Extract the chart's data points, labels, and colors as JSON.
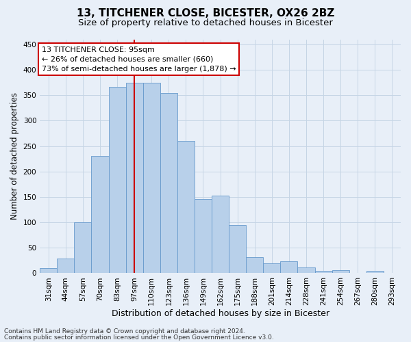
{
  "title1": "13, TITCHENER CLOSE, BICESTER, OX26 2BZ",
  "title2": "Size of property relative to detached houses in Bicester",
  "xlabel": "Distribution of detached houses by size in Bicester",
  "ylabel": "Number of detached properties",
  "categories": [
    "31sqm",
    "44sqm",
    "57sqm",
    "70sqm",
    "83sqm",
    "97sqm",
    "110sqm",
    "123sqm",
    "136sqm",
    "149sqm",
    "162sqm",
    "175sqm",
    "188sqm",
    "201sqm",
    "214sqm",
    "228sqm",
    "241sqm",
    "254sqm",
    "267sqm",
    "280sqm",
    "293sqm"
  ],
  "values": [
    10,
    29,
    100,
    230,
    367,
    375,
    375,
    355,
    260,
    146,
    153,
    95,
    32,
    20,
    23,
    12,
    5,
    6,
    0,
    5,
    0
  ],
  "bar_color": "#b8d0ea",
  "bar_edge_color": "#6699cc",
  "red_line_index": 5,
  "annotation_text_line1": "13 TITCHENER CLOSE: 95sqm",
  "annotation_text_line2": "← 26% of detached houses are smaller (660)",
  "annotation_text_line3": "73% of semi-detached houses are larger (1,878) →",
  "annotation_box_facecolor": "#ffffff",
  "annotation_box_edgecolor": "#cc0000",
  "red_line_color": "#cc0000",
  "grid_color": "#c5d5e5",
  "bg_color": "#e8eff8",
  "ylim": [
    0,
    460
  ],
  "yticks": [
    0,
    50,
    100,
    150,
    200,
    250,
    300,
    350,
    400,
    450
  ],
  "footer1": "Contains HM Land Registry data © Crown copyright and database right 2024.",
  "footer2": "Contains public sector information licensed under the Open Government Licence v3.0.",
  "title1_fontsize": 11,
  "title2_fontsize": 9.5,
  "xlabel_fontsize": 9,
  "ylabel_fontsize": 8.5,
  "tick_fontsize": 7.5,
  "footer_fontsize": 6.5,
  "annotation_fontsize": 8
}
